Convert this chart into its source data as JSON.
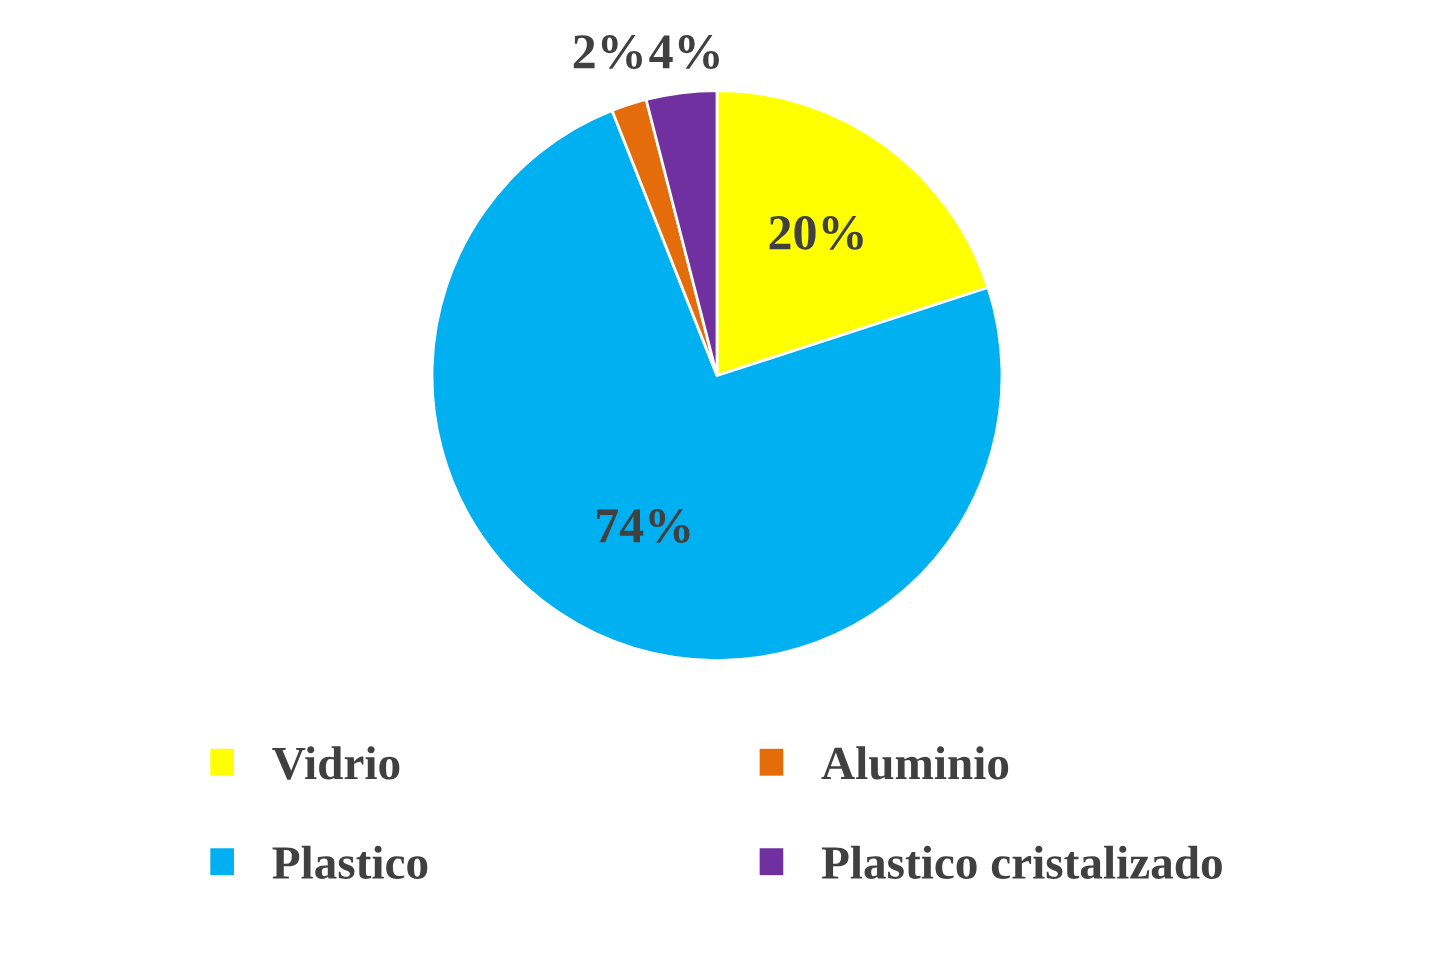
{
  "chart_data": {
    "type": "pie",
    "categories": [
      "Vidrio",
      "Plastico",
      "Aluminio",
      "Plastico cristalizado"
    ],
    "values": [
      20,
      74,
      2,
      4
    ],
    "value_labels": [
      "20%",
      "74%",
      "2%",
      "4%"
    ],
    "colors": [
      "#ffff00",
      "#00b0f0",
      "#e46c0a",
      "#7030a0"
    ],
    "legend": "bottom"
  }
}
